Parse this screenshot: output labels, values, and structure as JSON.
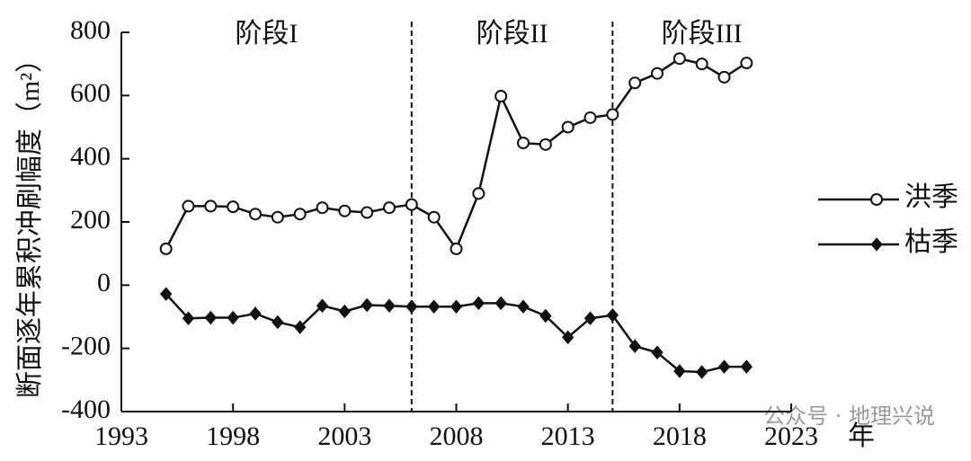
{
  "chart_data": {
    "type": "line",
    "y_label": "断面逐年累积冲刷幅度（m²）",
    "x_label": "年",
    "x": [
      1995,
      1996,
      1997,
      1998,
      1999,
      2000,
      2001,
      2002,
      2003,
      2004,
      2005,
      2006,
      2007,
      2008,
      2009,
      2010,
      2011,
      2012,
      2013,
      2014,
      2015,
      2016,
      2017,
      2018,
      2019,
      2020,
      2021
    ],
    "series": [
      {
        "name": "洪季",
        "color": "#111111",
        "marker": "circle",
        "values": [
          115,
          250,
          250,
          248,
          225,
          215,
          225,
          245,
          235,
          230,
          245,
          255,
          215,
          115,
          290,
          598,
          450,
          445,
          500,
          530,
          540,
          640,
          670,
          717,
          700,
          658,
          703
        ]
      },
      {
        "name": "枯季",
        "color": "#111111",
        "marker": "diamond",
        "values": [
          -28,
          -105,
          -103,
          -103,
          -90,
          -117,
          -133,
          -65,
          -83,
          -63,
          -65,
          -68,
          -68,
          -68,
          -57,
          -57,
          -68,
          -97,
          -165,
          -105,
          -95,
          -193,
          -213,
          -272,
          -275,
          -258,
          -258
        ]
      }
    ],
    "xlim": [
      1993,
      2023
    ],
    "xticks": [
      1993,
      1998,
      2003,
      2008,
      2013,
      2018,
      2023
    ],
    "ylim": [
      -400,
      800
    ],
    "yticks": [
      -400,
      -200,
      0,
      200,
      400,
      600,
      800
    ],
    "dividers": [
      2006,
      2015
    ],
    "stages": [
      "阶段I",
      "阶段II",
      "阶段III"
    ],
    "legend": "right",
    "watermark": "公众号 · 地理兴说"
  }
}
